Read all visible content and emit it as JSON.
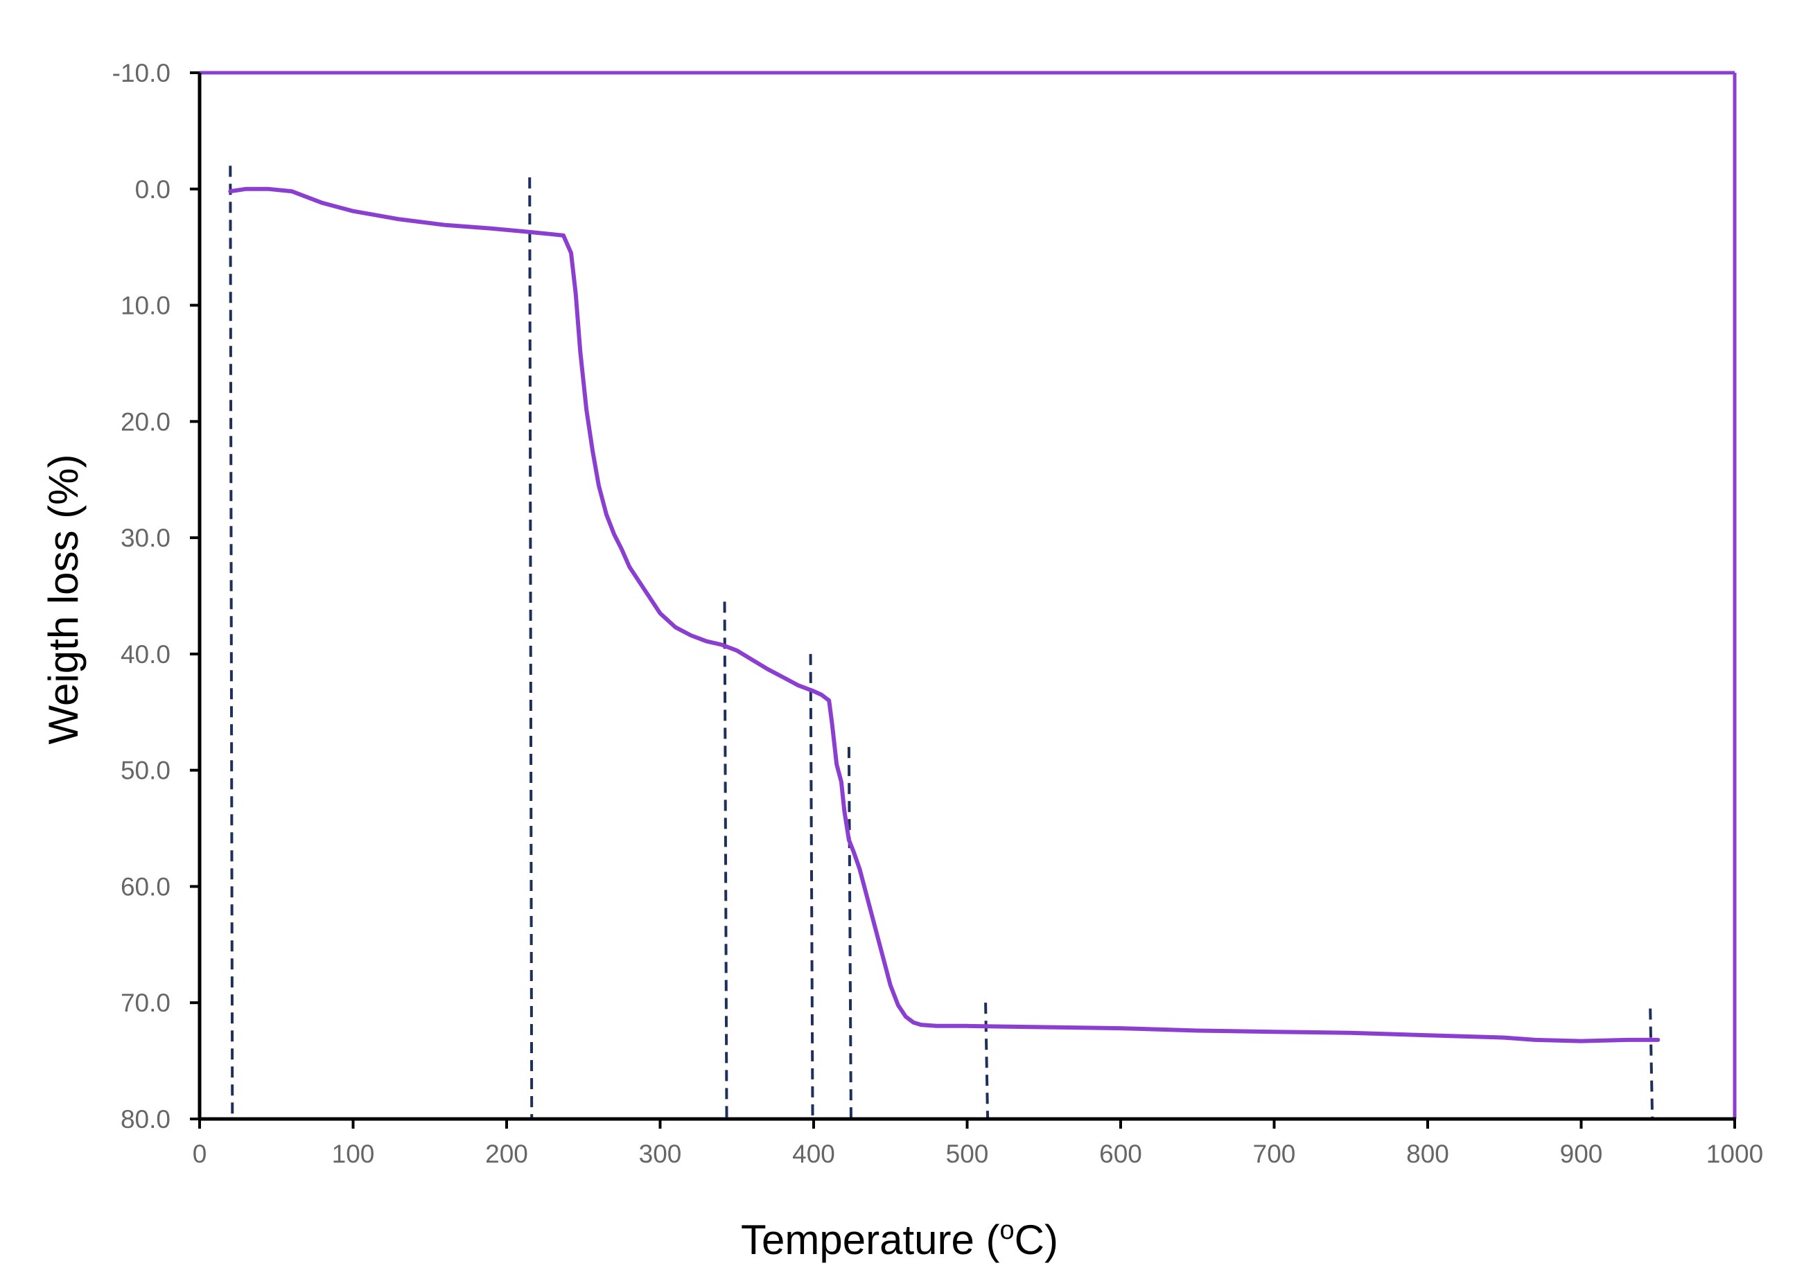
{
  "chart_data": {
    "type": "line",
    "xlabel": "Temperature",
    "xlabel_unit_pre": "(",
    "xlabel_unit_sup": "o",
    "xlabel_unit_post": "C)",
    "ylabel": "Weigth loss (%)",
    "xlim": [
      0,
      1000
    ],
    "ylim": [
      -10.0,
      80.0
    ],
    "y_inverted": true,
    "x_ticks": [
      "0",
      "100",
      "200",
      "300",
      "400",
      "500",
      "600",
      "700",
      "800",
      "900",
      "1000"
    ],
    "y_ticks": [
      "-10.0",
      "0.0",
      "10.0",
      "20.0",
      "30.0",
      "40.0",
      "50.0",
      "60.0",
      "70.0",
      "80.0"
    ],
    "grid": false,
    "colors": {
      "series": "#8b3fd0",
      "markers": "#1f2f5c",
      "axis": "#000000",
      "frame": "#8b3fd0"
    },
    "series": [
      {
        "x": [
          20,
          30,
          45,
          60,
          80,
          100,
          130,
          160,
          190,
          215,
          230,
          237,
          242,
          245,
          248,
          252,
          256,
          260,
          265,
          270,
          275,
          280,
          290,
          300,
          310,
          320,
          330,
          340,
          350,
          360,
          370,
          380,
          390,
          400,
          405,
          410,
          412,
          415,
          418,
          420,
          423,
          426,
          430,
          435,
          440,
          445,
          450,
          455,
          460,
          465,
          470,
          480,
          500,
          550,
          600,
          650,
          700,
          750,
          800,
          850,
          870,
          900,
          930,
          950
        ],
        "y": [
          0.2,
          0.0,
          0.0,
          0.2,
          1.2,
          1.9,
          2.6,
          3.1,
          3.4,
          3.7,
          3.9,
          4.0,
          5.5,
          9.0,
          14.0,
          19.0,
          22.5,
          25.5,
          28.0,
          29.7,
          31.0,
          32.5,
          34.5,
          36.5,
          37.7,
          38.4,
          38.9,
          39.2,
          39.7,
          40.5,
          41.3,
          42.0,
          42.7,
          43.2,
          43.5,
          44.0,
          46.0,
          49.5,
          51.0,
          53.5,
          56.0,
          57.0,
          58.5,
          61.0,
          63.5,
          66.0,
          68.5,
          70.2,
          71.2,
          71.7,
          71.9,
          72.0,
          72.0,
          72.1,
          72.2,
          72.4,
          72.5,
          72.6,
          72.8,
          73.0,
          73.2,
          73.3,
          73.2,
          73.2
        ]
      }
    ],
    "vertical_markers": [
      {
        "x": 20,
        "y_top": -2.0
      },
      {
        "x": 215,
        "y_top": -1.0
      },
      {
        "x": 342,
        "y_top": 35.5
      },
      {
        "x": 398,
        "y_top": 40.0
      },
      {
        "x": 423,
        "y_top": 48.0
      },
      {
        "x": 512,
        "y_top": 70.0
      },
      {
        "x": 945,
        "y_top": 70.5
      }
    ]
  }
}
